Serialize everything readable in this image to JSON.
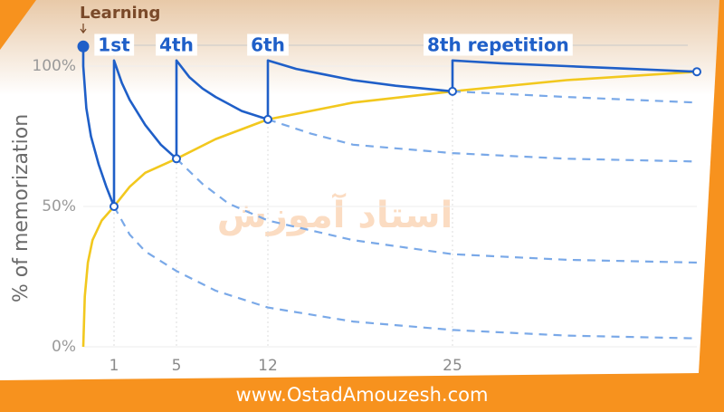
{
  "chart_data": {
    "type": "line",
    "ylabel": "% of memorization",
    "annotations": [
      "Learning",
      "1st",
      "4th",
      "6th",
      "8th repetition"
    ],
    "watermark": "استاد آموزش",
    "footer": "www.OstadAmouzesh.com",
    "xlim": [
      0,
      40
    ],
    "xticks": [
      1,
      5,
      12,
      25
    ],
    "ylim": [
      0,
      100
    ],
    "yticks": [
      {
        "value": 0,
        "label": "0%"
      },
      {
        "value": 50,
        "label": "50%"
      },
      {
        "value": 100,
        "label": "100%"
      }
    ],
    "grid": true,
    "series": [
      {
        "color": "#1f5fc8",
        "style": "solid",
        "x": [
          0,
          0,
          0.1,
          0.25,
          0.5,
          0.75,
          1,
          1,
          1.5,
          2,
          3,
          4,
          5,
          5,
          6,
          7,
          8,
          10,
          12,
          12,
          14,
          16,
          18,
          21,
          25,
          25,
          28,
          32,
          36,
          40
        ],
        "values": [
          107,
          100,
          85,
          75,
          65,
          57,
          50,
          102,
          94,
          88,
          79,
          72,
          67,
          102,
          96,
          92,
          89,
          84,
          81,
          102,
          99,
          97,
          95,
          93,
          91,
          102,
          101,
          100,
          99,
          98
        ]
      },
      {
        "color": "#f2c81e",
        "style": "solid",
        "x": [
          0,
          0.05,
          0.15,
          0.3,
          0.6,
          1,
          2,
          3,
          5,
          8,
          12,
          18,
          25,
          32,
          40
        ],
        "values": [
          0,
          18,
          30,
          38,
          45,
          50,
          57,
          62,
          67,
          74,
          81,
          87,
          91,
          95,
          98
        ]
      },
      {
        "color": "#7aa9e8",
        "style": "dashed",
        "x": [
          1,
          2,
          3,
          5,
          8,
          12,
          18,
          25,
          32,
          40
        ],
        "values": [
          50,
          40,
          34,
          27,
          20,
          14,
          9,
          6,
          4,
          3
        ]
      },
      {
        "color": "#7aa9e8",
        "style": "dashed",
        "x": [
          5,
          7,
          9,
          12,
          18,
          25,
          32,
          40
        ],
        "values": [
          67,
          58,
          51,
          45,
          38,
          33,
          31,
          30
        ]
      },
      {
        "color": "#7aa9e8",
        "style": "dashed",
        "x": [
          12,
          15,
          18,
          25,
          32,
          40
        ],
        "values": [
          81,
          76,
          72,
          69,
          67,
          66
        ]
      },
      {
        "color": "#7aa9e8",
        "style": "dashed",
        "x": [
          25,
          32,
          40
        ],
        "values": [
          91,
          89,
          87
        ]
      }
    ]
  }
}
